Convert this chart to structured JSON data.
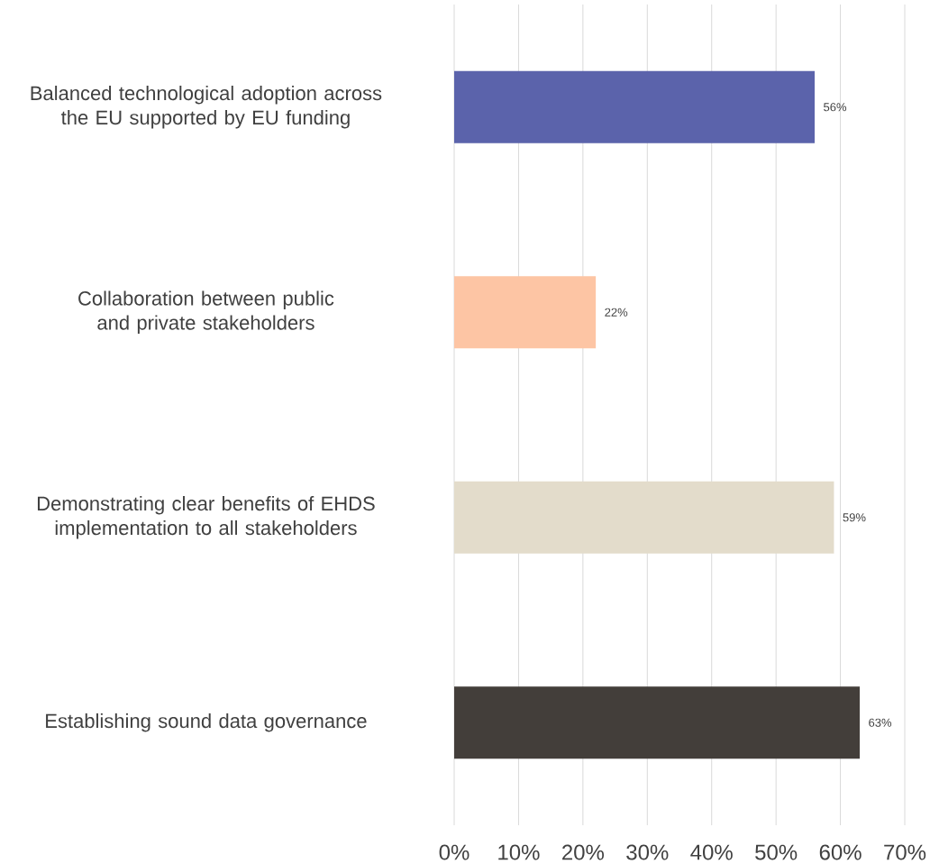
{
  "chart_data": {
    "type": "bar",
    "orientation": "horizontal",
    "categories": [
      "Balanced technological adoption across the EU supported by EU funding",
      "Collaboration between public and private stakeholders",
      "Demonstrating clear benefits of EHDS implementation to all stakeholders",
      "Establishing sound data governance"
    ],
    "values": [
      56,
      22,
      59,
      63
    ],
    "colors": [
      "#5b63ab",
      "#fdc5a4",
      "#e3dccb",
      "#433e3a"
    ],
    "value_labels": [
      "56%",
      "22%",
      "59%",
      "63%"
    ],
    "xlim": [
      0,
      70
    ],
    "xticks": [
      {
        "value": 0,
        "label": "0%"
      },
      {
        "value": 10,
        "label": "10%"
      },
      {
        "value": 20,
        "label": "20%"
      },
      {
        "value": 30,
        "label": "30%"
      },
      {
        "value": 40,
        "label": "40%"
      },
      {
        "value": 50,
        "label": "50%"
      },
      {
        "value": 60,
        "label": "60%"
      },
      {
        "value": 70,
        "label": "70%"
      }
    ],
    "grid": "x"
  }
}
